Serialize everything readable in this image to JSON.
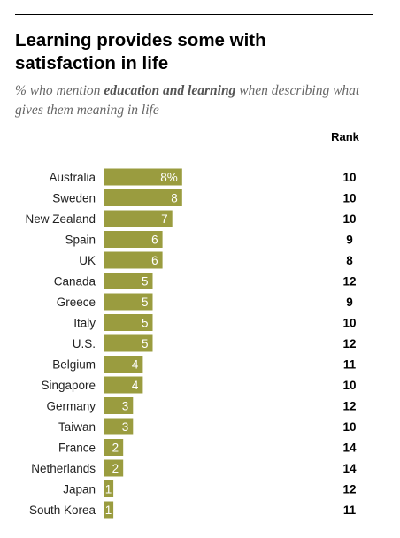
{
  "header": {
    "title": "Learning provides some with satisfaction in life",
    "subtitle_prefix": "% who mention ",
    "subtitle_emphasis": "education and learning",
    "subtitle_suffix": " when describing what gives them meaning in life",
    "rank_label": "Rank"
  },
  "colors": {
    "bar": "#9a9c3f",
    "bar_text": "#ffffff"
  },
  "chart_data": {
    "type": "bar",
    "orientation": "horizontal",
    "categories": [
      "Australia",
      "Sweden",
      "New Zealand",
      "Spain",
      "UK",
      "Canada",
      "Greece",
      "Italy",
      "U.S.",
      "Belgium",
      "Singapore",
      "Germany",
      "Taiwan",
      "France",
      "Netherlands",
      "Japan",
      "South Korea"
    ],
    "values": [
      8,
      8,
      7,
      6,
      6,
      5,
      5,
      5,
      5,
      4,
      4,
      3,
      3,
      2,
      2,
      1,
      1
    ],
    "value_labels": [
      "8%",
      "8",
      "7",
      "6",
      "6",
      "5",
      "5",
      "5",
      "5",
      "4",
      "4",
      "3",
      "3",
      "2",
      "2",
      "1",
      "1"
    ],
    "rank": [
      "10",
      "10",
      "10",
      "9",
      "8",
      "12",
      "9",
      "10",
      "12",
      "11",
      "10",
      "12",
      "10",
      "14",
      "14",
      "12",
      "11"
    ]
  }
}
